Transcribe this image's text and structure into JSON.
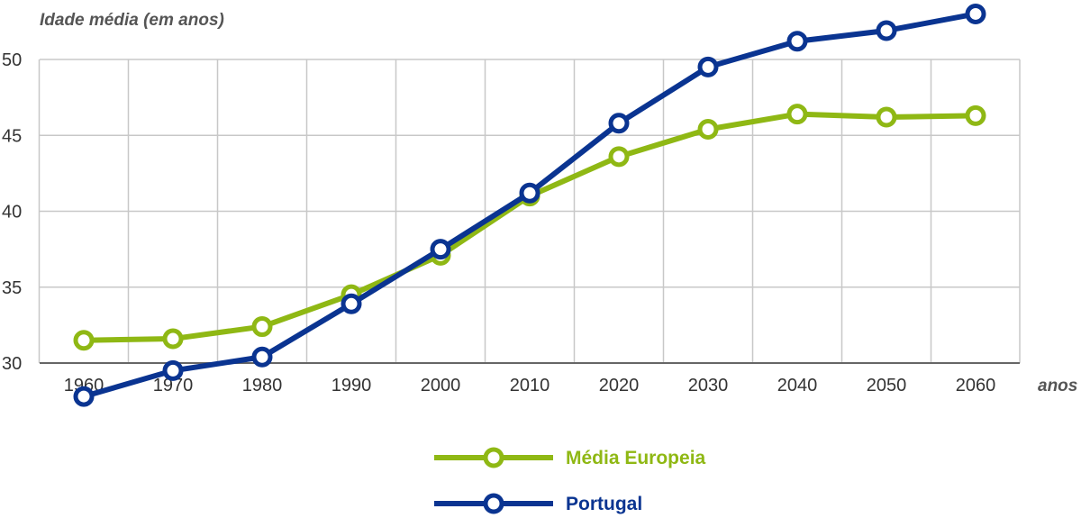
{
  "chart_data": {
    "type": "line",
    "ylabel": "Idade média (em anos)",
    "xlabel": "anos",
    "x": [
      1960,
      1970,
      1980,
      1990,
      2000,
      2010,
      2020,
      2030,
      2040,
      2050,
      2060
    ],
    "x_tick_labels": [
      "1960",
      "1970",
      "1980",
      "1990",
      "2000",
      "2010",
      "2020",
      "2030",
      "2040",
      "2050",
      "2060"
    ],
    "y_ticks": [
      30,
      35,
      40,
      45,
      50
    ],
    "y_tick_labels": [
      "30",
      "35",
      "40",
      "45",
      "50"
    ],
    "ylim": [
      30,
      50
    ],
    "grid": true,
    "legend_position": "bottom-center",
    "series": [
      {
        "name": "Média Europeia",
        "color": "#8fb814",
        "values": [
          31.5,
          31.6,
          32.4,
          34.5,
          37.1,
          41.0,
          43.6,
          45.4,
          46.4,
          46.2,
          46.3
        ]
      },
      {
        "name": "Portugal",
        "color": "#0a3491",
        "values": [
          27.8,
          29.5,
          30.4,
          33.9,
          37.5,
          41.2,
          45.8,
          49.5,
          51.2,
          51.9,
          53.0
        ]
      }
    ]
  }
}
